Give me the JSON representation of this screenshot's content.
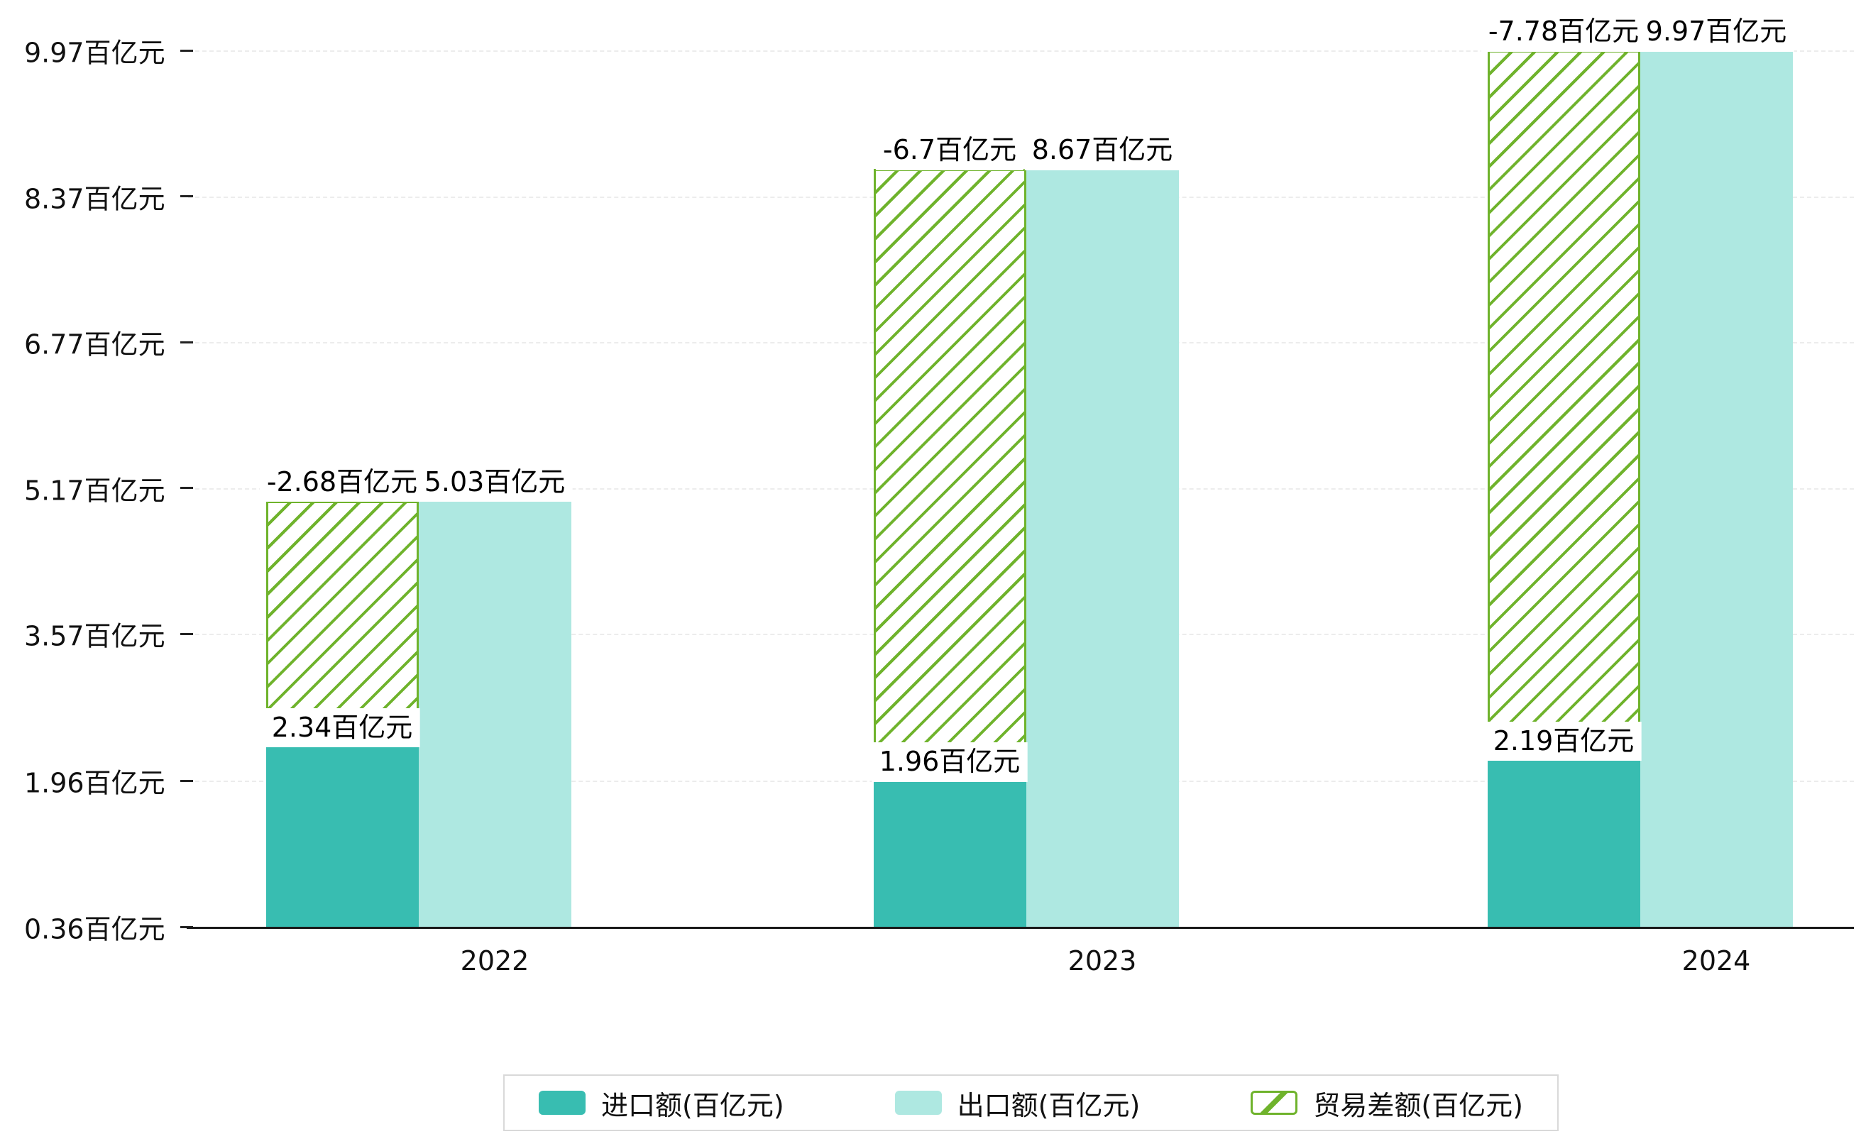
{
  "chart_data": {
    "type": "bar",
    "title": "",
    "unit": "百亿元",
    "categories": [
      "2022",
      "2023",
      "2024"
    ],
    "series": [
      {
        "name": "进口额(百亿元)",
        "type": "bar",
        "color": "#38bdb1",
        "pattern": "solid",
        "values": [
          2.34,
          1.96,
          2.19
        ],
        "data_labels": [
          "2.34百亿元",
          "1.96百亿元",
          "2.19百亿元"
        ]
      },
      {
        "name": "出口额(百亿元)",
        "type": "bar",
        "color": "#aee8e1",
        "pattern": "solid",
        "values": [
          5.03,
          8.67,
          9.97
        ],
        "data_labels": [
          "5.03百亿元",
          "8.67百亿元",
          "9.97百亿元"
        ]
      },
      {
        "name": "贸易差额(百亿元)",
        "type": "floating-bar",
        "color": "#6fb32c",
        "pattern": "diagonal-hatch",
        "values": [
          -2.68,
          -6.7,
          -7.78
        ],
        "data_labels": [
          "-2.68百亿元",
          "-6.7百亿元",
          "-7.78百亿元"
        ]
      }
    ],
    "y_axis": {
      "min": 0.36,
      "max": 9.97,
      "ticks": [
        {
          "value": 0.36,
          "label": "0.36百亿元"
        },
        {
          "value": 1.96,
          "label": "1.96百亿元"
        },
        {
          "value": 3.57,
          "label": "3.57百亿元"
        },
        {
          "value": 5.17,
          "label": "5.17百亿元"
        },
        {
          "value": 6.77,
          "label": "6.77百亿元"
        },
        {
          "value": 8.37,
          "label": "8.37百亿元"
        },
        {
          "value": 9.97,
          "label": "9.97百亿元"
        }
      ]
    },
    "legend": {
      "position": "bottom",
      "entries": [
        "进口额(百亿元)",
        "出口额(百亿元)",
        "贸易差额(百亿元)"
      ]
    },
    "grid": "horizontal-dashed"
  },
  "colors": {
    "import": "#38bdb1",
    "export": "#aee8e1",
    "trade_balance": "#6fb32c",
    "axis": "#1a1a1a",
    "gridline": "#ececec",
    "legend_border": "#d9d9d9"
  }
}
